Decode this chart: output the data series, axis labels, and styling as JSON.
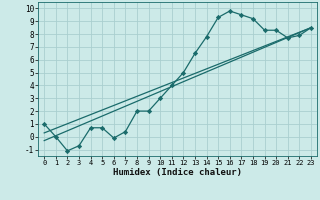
{
  "xlabel": "Humidex (Indice chaleur)",
  "ylabel": "",
  "bg_color": "#cceae8",
  "grid_color": "#aacfcf",
  "line_color": "#1a6b6b",
  "xlim": [
    -0.5,
    23.5
  ],
  "ylim": [
    -1.5,
    10.5
  ],
  "xticks": [
    0,
    1,
    2,
    3,
    4,
    5,
    6,
    7,
    8,
    9,
    10,
    11,
    12,
    13,
    14,
    15,
    16,
    17,
    18,
    19,
    20,
    21,
    22,
    23
  ],
  "yticks": [
    -1,
    0,
    1,
    2,
    3,
    4,
    5,
    6,
    7,
    8,
    9,
    10
  ],
  "line1_x": [
    0,
    1,
    2,
    3,
    4,
    5,
    6,
    7,
    8,
    9,
    10,
    11,
    12,
    13,
    14,
    15,
    16,
    17,
    18,
    19,
    20,
    21,
    22,
    23
  ],
  "line1_y": [
    1.0,
    0.0,
    -1.1,
    -0.7,
    0.7,
    0.7,
    -0.1,
    0.4,
    2.0,
    2.0,
    3.0,
    4.0,
    5.0,
    6.5,
    7.8,
    9.3,
    9.8,
    9.5,
    9.2,
    8.3,
    8.3,
    7.7,
    7.9,
    8.5
  ],
  "line2_x": [
    0,
    23
  ],
  "line2_y": [
    0.3,
    8.5
  ],
  "line3_x": [
    0,
    23
  ],
  "line3_y": [
    -0.3,
    8.5
  ],
  "marker": "D",
  "marker_size": 2.2,
  "tick_fontsize": 5.0,
  "xlabel_fontsize": 6.5,
  "linewidth": 0.9
}
